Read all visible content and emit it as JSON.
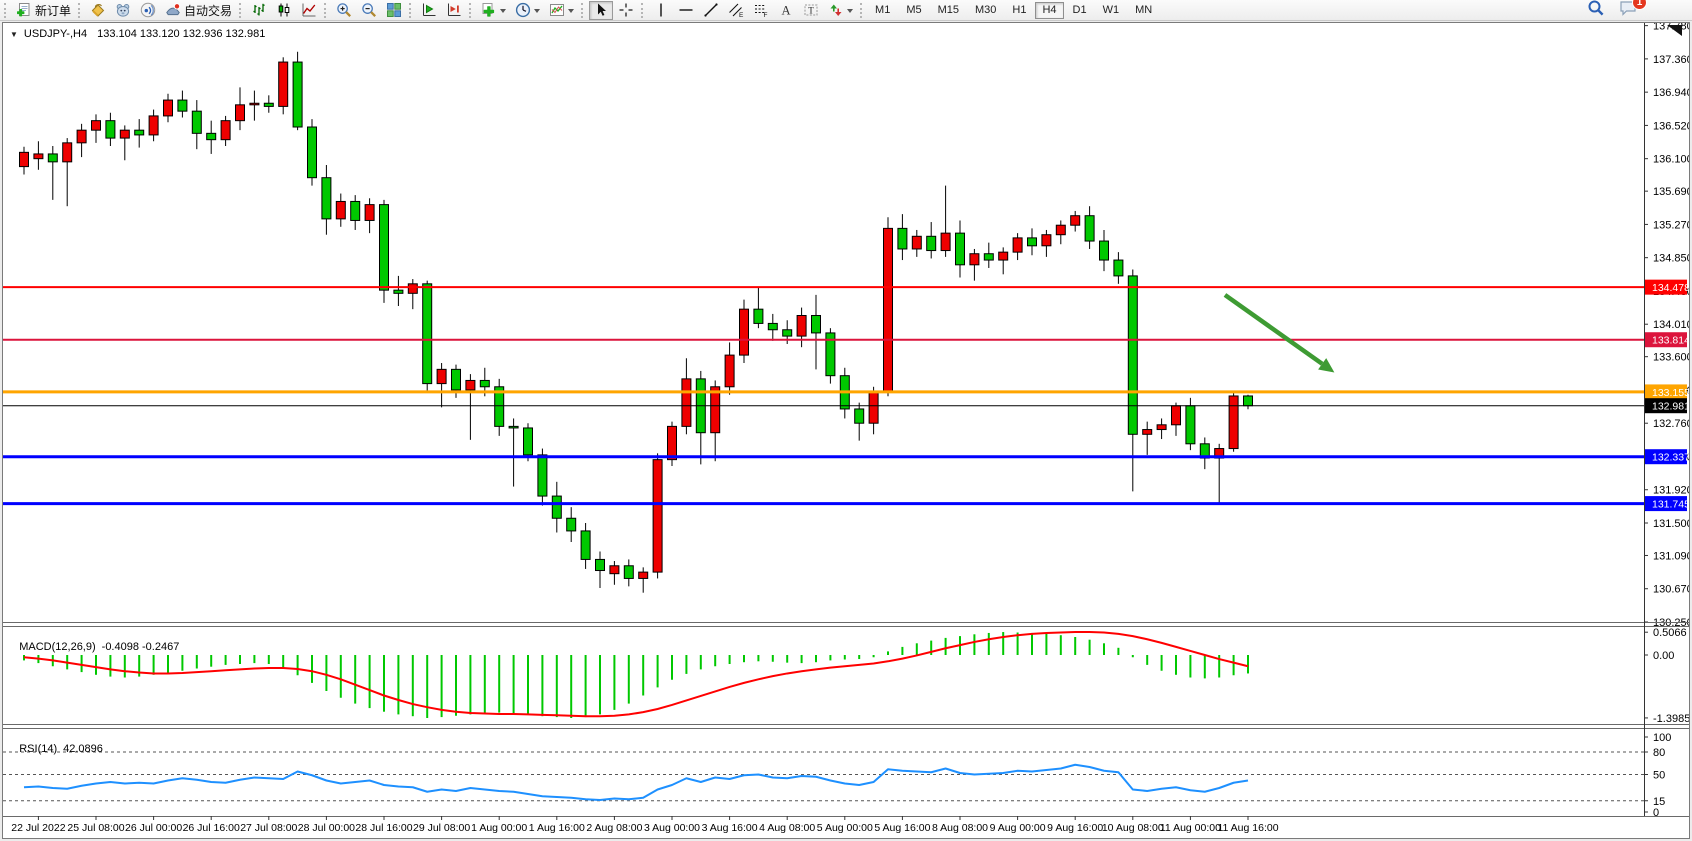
{
  "toolbar": {
    "new_order_label": "新订单",
    "autotrade_label": "自动交易",
    "timeframes": [
      "M1",
      "M5",
      "M15",
      "M30",
      "H1",
      "H4",
      "D1",
      "W1",
      "MN"
    ],
    "active_timeframe": "H4",
    "notification_count": "1"
  },
  "chart_window": {
    "symbol": "USDJPY-,H4",
    "ohlc_text": "133.104 133.120 132.936 132.981"
  },
  "chart_data": [
    {
      "type": "candlestick",
      "title": "USDJPY-,H4",
      "timeframe": "H4",
      "current_bar": {
        "open": 133.104,
        "high": 133.12,
        "low": 132.936,
        "close": 132.981
      },
      "ylim": [
        130.25,
        137.82
      ],
      "bull_color": "#ee0000",
      "bear_color": "#00c800",
      "price_ticks": [
        "137.780",
        "137.360",
        "136.940",
        "136.520",
        "136.100",
        "135.690",
        "135.270",
        "134.850",
        "134.430",
        "134.010",
        "133.600",
        "133.180",
        "132.760",
        "132.340",
        "131.920",
        "131.500",
        "131.090",
        "130.670",
        "130.250"
      ],
      "time_labels": [
        "22 Jul 2022",
        "25 Jul 08:00",
        "26 Jul 00:00",
        "26 Jul 16:00",
        "27 Jul 08:00",
        "28 Jul 00:00",
        "28 Jul 16:00",
        "29 Jul 08:00",
        "1 Aug 00:00",
        "1 Aug 16:00",
        "2 Aug 08:00",
        "3 Aug 00:00",
        "3 Aug 16:00",
        "4 Aug 08:00",
        "5 Aug 00:00",
        "5 Aug 16:00",
        "8 Aug 08:00",
        "9 Aug 00:00",
        "9 Aug 16:00",
        "10 Aug 08:00",
        "11 Aug 00:00",
        "11 Aug 16:00"
      ],
      "first_label_bar": 1,
      "bars_per_label": 4,
      "hlines": [
        {
          "price": 134.478,
          "label": "134.478",
          "color": "#ff0000",
          "width": 2
        },
        {
          "price": 133.814,
          "label": "133.814",
          "color": "#dc143c",
          "width": 2
        },
        {
          "price": 133.155,
          "label": "133.155",
          "color": "#ffa500",
          "width": 3
        },
        {
          "price": 132.981,
          "label": "132.981",
          "color": "#000000",
          "width": 1
        },
        {
          "price": 132.337,
          "label": "132.337",
          "color": "#0000ff",
          "width": 3
        },
        {
          "price": 131.745,
          "label": "131.745",
          "color": "#0000ff",
          "width": 3
        }
      ],
      "arrow": {
        "from_bar": 83.4,
        "from_price": 134.38,
        "to_bar": 91.0,
        "to_price": 133.4,
        "color": "#3e9b33"
      },
      "candles": [
        [
          136.0,
          136.25,
          135.9,
          136.18
        ],
        [
          136.1,
          136.32,
          135.96,
          136.16
        ],
        [
          136.16,
          136.26,
          135.58,
          136.06
        ],
        [
          136.06,
          136.36,
          135.5,
          136.3
        ],
        [
          136.3,
          136.54,
          136.12,
          136.46
        ],
        [
          136.46,
          136.66,
          136.3,
          136.58
        ],
        [
          136.58,
          136.68,
          136.26,
          136.36
        ],
        [
          136.36,
          136.52,
          136.08,
          136.46
        ],
        [
          136.46,
          136.6,
          136.24,
          136.4
        ],
        [
          136.4,
          136.72,
          136.32,
          136.64
        ],
        [
          136.64,
          136.92,
          136.56,
          136.84
        ],
        [
          136.84,
          136.96,
          136.62,
          136.7
        ],
        [
          136.7,
          136.84,
          136.22,
          136.42
        ],
        [
          136.42,
          136.58,
          136.16,
          136.34
        ],
        [
          136.34,
          136.64,
          136.26,
          136.58
        ],
        [
          136.58,
          137.0,
          136.46,
          136.78
        ],
        [
          136.78,
          136.96,
          136.58,
          136.8
        ],
        [
          136.8,
          136.9,
          136.68,
          136.76
        ],
        [
          136.76,
          137.38,
          136.66,
          137.32
        ],
        [
          137.32,
          137.45,
          136.46,
          136.5
        ],
        [
          136.5,
          136.6,
          135.76,
          135.86
        ],
        [
          135.86,
          136.02,
          135.14,
          135.34
        ],
        [
          135.34,
          135.66,
          135.24,
          135.56
        ],
        [
          135.56,
          135.64,
          135.2,
          135.32
        ],
        [
          135.32,
          135.6,
          135.16,
          135.52
        ],
        [
          135.52,
          135.58,
          134.28,
          134.44
        ],
        [
          134.44,
          134.62,
          134.24,
          134.4
        ],
        [
          134.4,
          134.58,
          134.2,
          134.52
        ],
        [
          134.52,
          134.56,
          133.15,
          133.26
        ],
        [
          133.26,
          133.52,
          132.96,
          133.44
        ],
        [
          133.44,
          133.5,
          133.08,
          133.18
        ],
        [
          133.18,
          133.38,
          132.55,
          133.3
        ],
        [
          133.3,
          133.46,
          133.1,
          133.22
        ],
        [
          133.22,
          133.32,
          132.6,
          132.72
        ],
        [
          132.72,
          132.82,
          131.96,
          132.7
        ],
        [
          132.7,
          132.76,
          132.28,
          132.36
        ],
        [
          132.36,
          132.44,
          131.72,
          131.84
        ],
        [
          131.84,
          132.02,
          131.38,
          131.56
        ],
        [
          131.56,
          131.7,
          131.26,
          131.4
        ],
        [
          131.4,
          131.5,
          130.92,
          131.04
        ],
        [
          131.04,
          131.14,
          130.68,
          130.9
        ],
        [
          130.86,
          131.02,
          130.72,
          130.96
        ],
        [
          130.96,
          131.04,
          130.7,
          130.8
        ],
        [
          130.8,
          130.94,
          130.62,
          130.88
        ],
        [
          130.88,
          132.38,
          130.8,
          132.3
        ],
        [
          132.3,
          132.78,
          132.22,
          132.72
        ],
        [
          132.72,
          133.58,
          132.62,
          133.32
        ],
        [
          133.32,
          133.42,
          132.24,
          132.64
        ],
        [
          132.64,
          133.3,
          132.28,
          133.22
        ],
        [
          133.22,
          133.78,
          133.12,
          133.62
        ],
        [
          133.62,
          134.32,
          133.52,
          134.2
        ],
        [
          134.2,
          134.48,
          133.96,
          134.02
        ],
        [
          134.02,
          134.14,
          133.8,
          133.94
        ],
        [
          133.94,
          134.06,
          133.76,
          133.86
        ],
        [
          133.86,
          134.22,
          133.72,
          134.12
        ],
        [
          134.12,
          134.38,
          133.44,
          133.9
        ],
        [
          133.9,
          133.96,
          133.26,
          133.36
        ],
        [
          133.36,
          133.46,
          132.82,
          132.94
        ],
        [
          132.94,
          133.02,
          132.54,
          132.76
        ],
        [
          132.76,
          133.22,
          132.62,
          133.16
        ],
        [
          133.16,
          135.36,
          133.1,
          135.22
        ],
        [
          135.22,
          135.4,
          134.82,
          134.96
        ],
        [
          134.96,
          135.2,
          134.86,
          135.12
        ],
        [
          135.12,
          135.3,
          134.84,
          134.94
        ],
        [
          134.94,
          135.76,
          134.86,
          135.16
        ],
        [
          135.16,
          135.32,
          134.6,
          134.76
        ],
        [
          134.76,
          134.96,
          134.56,
          134.9
        ],
        [
          134.9,
          135.04,
          134.72,
          134.82
        ],
        [
          134.82,
          134.98,
          134.64,
          134.92
        ],
        [
          134.92,
          135.16,
          134.82,
          135.1
        ],
        [
          135.1,
          135.22,
          134.88,
          135.0
        ],
        [
          135.0,
          135.2,
          134.86,
          135.14
        ],
        [
          135.14,
          135.32,
          135.02,
          135.26
        ],
        [
          135.26,
          135.44,
          135.18,
          135.38
        ],
        [
          135.38,
          135.5,
          134.96,
          135.06
        ],
        [
          135.06,
          135.2,
          134.68,
          134.82
        ],
        [
          134.82,
          134.92,
          134.52,
          134.62
        ],
        [
          134.62,
          134.7,
          131.9,
          132.62
        ],
        [
          132.62,
          132.78,
          132.36,
          132.68
        ],
        [
          132.68,
          132.82,
          132.56,
          132.74
        ],
        [
          132.74,
          133.02,
          132.6,
          132.98
        ],
        [
          132.98,
          133.08,
          132.42,
          132.5
        ],
        [
          132.5,
          132.58,
          132.18,
          132.32
        ],
        [
          132.32,
          132.5,
          131.74,
          132.44
        ],
        [
          132.44,
          133.16,
          132.4,
          133.104
        ],
        [
          133.104,
          133.12,
          132.936,
          132.981
        ]
      ]
    },
    {
      "type": "bar",
      "name": "MACD(12,26,9)",
      "values_label": "-0.4098 -0.2467",
      "ylim": [
        -1.3985,
        0.5066
      ],
      "axis_ticks": [
        "0.5066",
        "0.00",
        "-1.3985"
      ],
      "hist_color": "#00c800",
      "signal_color": "#ff0000",
      "histogram": [
        -0.12,
        -0.18,
        -0.25,
        -0.32,
        -0.38,
        -0.44,
        -0.48,
        -0.5,
        -0.48,
        -0.44,
        -0.4,
        -0.35,
        -0.3,
        -0.26,
        -0.22,
        -0.2,
        -0.18,
        -0.2,
        -0.28,
        -0.45,
        -0.62,
        -0.8,
        -0.95,
        -1.08,
        -1.18,
        -1.26,
        -1.32,
        -1.36,
        -1.4,
        -1.38,
        -1.35,
        -1.32,
        -1.3,
        -1.28,
        -1.3,
        -1.33,
        -1.36,
        -1.38,
        -1.4,
        -1.38,
        -1.32,
        -1.22,
        -1.08,
        -0.9,
        -0.72,
        -0.55,
        -0.42,
        -0.32,
        -0.25,
        -0.2,
        -0.16,
        -0.14,
        -0.15,
        -0.17,
        -0.18,
        -0.16,
        -0.12,
        -0.1,
        -0.09,
        -0.05,
        0.08,
        0.18,
        0.26,
        0.32,
        0.38,
        0.42,
        0.46,
        0.49,
        0.51,
        0.5,
        0.49,
        0.47,
        0.44,
        0.4,
        0.34,
        0.26,
        0.16,
        -0.05,
        -0.22,
        -0.35,
        -0.44,
        -0.5,
        -0.52,
        -0.5,
        -0.45,
        -0.41
      ],
      "signal": [
        -0.05,
        -0.08,
        -0.12,
        -0.17,
        -0.22,
        -0.27,
        -0.32,
        -0.36,
        -0.39,
        -0.41,
        -0.41,
        -0.4,
        -0.38,
        -0.36,
        -0.34,
        -0.32,
        -0.3,
        -0.29,
        -0.29,
        -0.31,
        -0.36,
        -0.44,
        -0.54,
        -0.66,
        -0.78,
        -0.9,
        -1.0,
        -1.09,
        -1.16,
        -1.22,
        -1.26,
        -1.29,
        -1.3,
        -1.31,
        -1.31,
        -1.32,
        -1.33,
        -1.34,
        -1.35,
        -1.36,
        -1.36,
        -1.35,
        -1.32,
        -1.27,
        -1.2,
        -1.11,
        -1.01,
        -0.91,
        -0.81,
        -0.71,
        -0.62,
        -0.54,
        -0.47,
        -0.41,
        -0.36,
        -0.32,
        -0.28,
        -0.25,
        -0.22,
        -0.19,
        -0.14,
        -0.08,
        -0.01,
        0.07,
        0.15,
        0.22,
        0.29,
        0.35,
        0.4,
        0.44,
        0.47,
        0.49,
        0.5,
        0.51,
        0.51,
        0.5,
        0.47,
        0.42,
        0.35,
        0.27,
        0.18,
        0.09,
        0.0,
        -0.09,
        -0.17,
        -0.25
      ]
    },
    {
      "type": "line",
      "name": "RSI(14)",
      "values_label": "42.0896",
      "ylim": [
        0,
        100
      ],
      "axis_ticks": [
        "100",
        "80",
        "50",
        "15",
        "0"
      ],
      "levels": [
        80,
        50,
        15
      ],
      "color": "#1e90ff",
      "values": [
        33,
        34,
        32,
        31,
        35,
        38,
        40,
        38,
        39,
        38,
        42,
        45,
        43,
        40,
        39,
        43,
        46,
        45,
        44,
        54,
        49,
        42,
        38,
        40,
        42,
        36,
        34,
        33,
        27,
        30,
        28,
        32,
        30,
        28,
        27,
        24,
        21,
        20,
        19,
        17,
        16,
        18,
        17,
        19,
        30,
        36,
        45,
        40,
        46,
        44,
        49,
        50,
        46,
        45,
        48,
        47,
        42,
        38,
        36,
        40,
        57,
        55,
        54,
        53,
        58,
        52,
        50,
        51,
        52,
        55,
        54,
        56,
        58,
        63,
        60,
        55,
        53,
        30,
        28,
        31,
        33,
        29,
        27,
        32,
        39,
        42
      ]
    }
  ]
}
